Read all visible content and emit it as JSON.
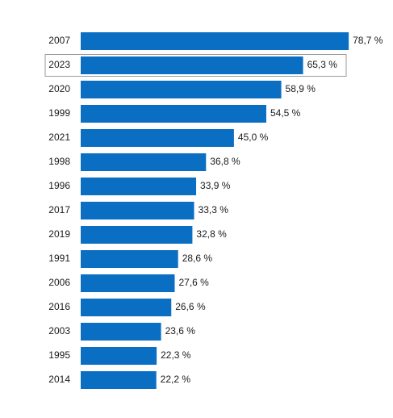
{
  "chart_data": {
    "type": "hbar",
    "categories": [
      "2007",
      "2023",
      "2020",
      "1999",
      "2021",
      "1998",
      "1996",
      "2017",
      "2019",
      "1991",
      "2006",
      "2016",
      "2003",
      "1995",
      "2014"
    ],
    "values": [
      78.7,
      65.3,
      58.9,
      54.5,
      45.0,
      36.8,
      33.9,
      33.3,
      32.8,
      28.6,
      27.6,
      26.6,
      23.6,
      22.3,
      22.2
    ],
    "value_labels": [
      "78,7 %",
      "65,3 %",
      "58,9 %",
      "54,5 %",
      "45,0 %",
      "36,8 %",
      "33,9 %",
      "33,3 %",
      "32,8 %",
      "28,6 %",
      "27,6 %",
      "26,6 %",
      "23,6 %",
      "22,3 %",
      "22,2 %"
    ],
    "color": "#0a6fc2",
    "highlight_category": "2023",
    "xlim": [
      0,
      80
    ]
  }
}
